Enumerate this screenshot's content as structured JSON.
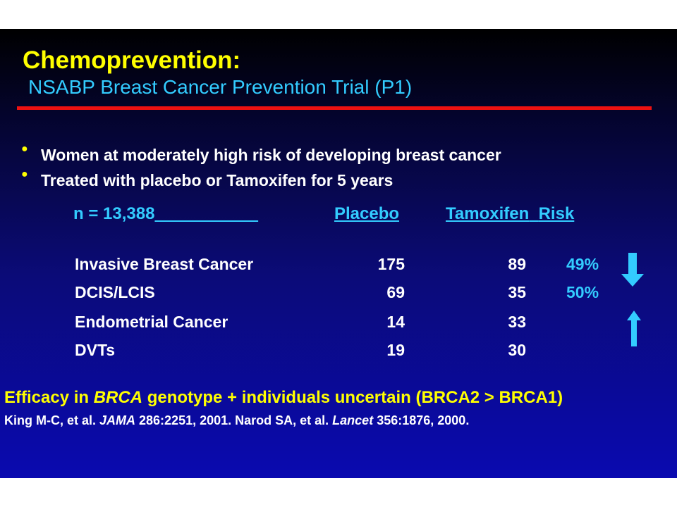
{
  "title": "Chemoprevention:",
  "subtitle": "NSABP Breast Cancer Prevention Trial (P1)",
  "bullets": [
    "Women at moderately high risk of developing breast cancer",
    "Treated with placebo or Tamoxifen for 5 years"
  ],
  "table": {
    "n_label": "n = 13,388",
    "headers": {
      "placebo": "Placebo",
      "tamoxifen": "Tamoxifen",
      "risk": "Risk"
    },
    "rows": [
      {
        "label": "Invasive Breast Cancer",
        "placebo": "175",
        "tamoxifen": "89",
        "risk": "49%"
      },
      {
        "label": "DCIS/LCIS",
        "placebo": "69",
        "tamoxifen": "35",
        "risk": "50%"
      },
      {
        "label": "Endometrial Cancer",
        "placebo": "14",
        "tamoxifen": "33",
        "risk": ""
      },
      {
        "label": "DVTs",
        "placebo": "19",
        "tamoxifen": "30",
        "risk": ""
      }
    ]
  },
  "icons": {
    "decrease": "arrow-down-icon",
    "increase": "arrow-up-icon"
  },
  "footer": {
    "efficacy_pre": "Efficacy in ",
    "efficacy_em": "BRCA",
    "efficacy_post": " genotype + individuals uncertain (BRCA2 > BRCA1)",
    "cite_1": "King M-C, et al. ",
    "cite_1_journal": "JAMA",
    "cite_1_ref": " 286:2251, 2001.  Narod SA, et al.  ",
    "cite_2_journal": "Lancet",
    "cite_2_ref": " 356:1876, 2000."
  },
  "colors": {
    "title": "#ffff00",
    "accent": "#33ccff",
    "rule": "#ee1111",
    "text": "#ffffff"
  }
}
